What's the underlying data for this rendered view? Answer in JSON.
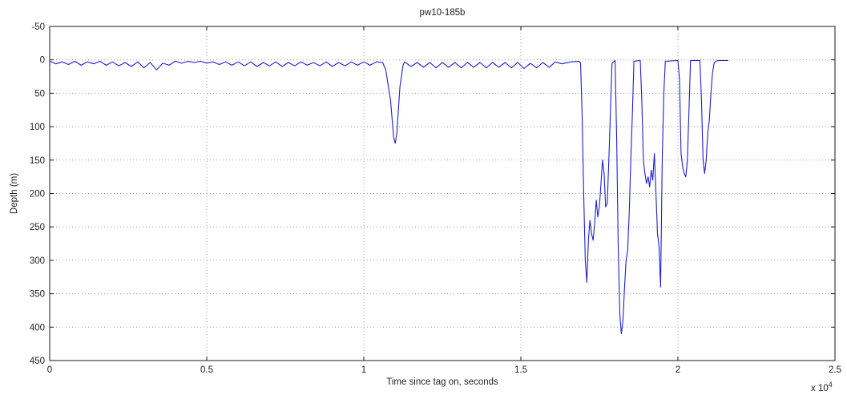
{
  "chart_data": {
    "type": "line",
    "title": "pw10-185b",
    "xlabel": "Time since tag on, seconds",
    "ylabel": "Depth (m)",
    "x_multiplier_label": "x 10",
    "x_multiplier_exponent": "4",
    "xlim": [
      0,
      2.5
    ],
    "ylim": [
      -50,
      450
    ],
    "y_reversed": true,
    "grid": true,
    "x_ticks": [
      0,
      0.5,
      1,
      1.5,
      2,
      2.5
    ],
    "x_tick_labels": [
      "0",
      "0.5",
      "1",
      "1.5",
      "2",
      "2.5"
    ],
    "y_ticks": [
      -50,
      0,
      50,
      100,
      150,
      200,
      250,
      300,
      350,
      400,
      450
    ],
    "y_tick_labels": [
      "-50",
      "0",
      "50",
      "100",
      "150",
      "200",
      "250",
      "300",
      "350",
      "400",
      "450"
    ],
    "colors": {
      "series": "#1f1fd0",
      "grid": "#9a9a9a",
      "frame": "#1a1a1a"
    },
    "series": [
      {
        "values": [
          [
            0.0,
            2
          ],
          [
            0.02,
            6
          ],
          [
            0.04,
            3
          ],
          [
            0.06,
            7
          ],
          [
            0.08,
            2
          ],
          [
            0.1,
            8
          ],
          [
            0.12,
            3
          ],
          [
            0.14,
            6
          ],
          [
            0.16,
            2
          ],
          [
            0.18,
            8
          ],
          [
            0.2,
            3
          ],
          [
            0.22,
            9
          ],
          [
            0.24,
            4
          ],
          [
            0.26,
            10
          ],
          [
            0.28,
            3
          ],
          [
            0.3,
            12
          ],
          [
            0.32,
            4
          ],
          [
            0.34,
            15
          ],
          [
            0.36,
            5
          ],
          [
            0.38,
            8
          ],
          [
            0.4,
            2
          ],
          [
            0.42,
            5
          ],
          [
            0.44,
            2
          ],
          [
            0.46,
            4
          ],
          [
            0.48,
            2
          ],
          [
            0.5,
            5
          ],
          [
            0.52,
            3
          ],
          [
            0.54,
            7
          ],
          [
            0.56,
            3
          ],
          [
            0.58,
            8
          ],
          [
            0.6,
            3
          ],
          [
            0.62,
            9
          ],
          [
            0.64,
            3
          ],
          [
            0.66,
            10
          ],
          [
            0.68,
            4
          ],
          [
            0.7,
            9
          ],
          [
            0.72,
            3
          ],
          [
            0.74,
            10
          ],
          [
            0.76,
            4
          ],
          [
            0.78,
            9
          ],
          [
            0.8,
            3
          ],
          [
            0.82,
            8
          ],
          [
            0.84,
            4
          ],
          [
            0.86,
            9
          ],
          [
            0.88,
            3
          ],
          [
            0.9,
            10
          ],
          [
            0.92,
            4
          ],
          [
            0.94,
            9
          ],
          [
            0.96,
            3
          ],
          [
            0.98,
            8
          ],
          [
            1.0,
            3
          ],
          [
            1.02,
            8
          ],
          [
            1.04,
            3
          ],
          [
            1.06,
            4
          ],
          [
            1.07,
            15
          ],
          [
            1.085,
            60
          ],
          [
            1.095,
            115
          ],
          [
            1.1,
            125
          ],
          [
            1.105,
            110
          ],
          [
            1.115,
            40
          ],
          [
            1.125,
            8
          ],
          [
            1.13,
            3
          ],
          [
            1.15,
            10
          ],
          [
            1.17,
            4
          ],
          [
            1.19,
            11
          ],
          [
            1.21,
            4
          ],
          [
            1.23,
            12
          ],
          [
            1.25,
            4
          ],
          [
            1.27,
            11
          ],
          [
            1.29,
            4
          ],
          [
            1.31,
            12
          ],
          [
            1.33,
            4
          ],
          [
            1.35,
            11
          ],
          [
            1.37,
            4
          ],
          [
            1.39,
            12
          ],
          [
            1.41,
            4
          ],
          [
            1.43,
            11
          ],
          [
            1.45,
            4
          ],
          [
            1.47,
            12
          ],
          [
            1.49,
            4
          ],
          [
            1.51,
            13
          ],
          [
            1.53,
            5
          ],
          [
            1.55,
            12
          ],
          [
            1.57,
            4
          ],
          [
            1.59,
            11
          ],
          [
            1.61,
            3
          ],
          [
            1.63,
            6
          ],
          [
            1.66,
            3
          ],
          [
            1.685,
            2
          ],
          [
            1.69,
            5
          ],
          [
            1.695,
            80
          ],
          [
            1.7,
            200
          ],
          [
            1.705,
            300
          ],
          [
            1.71,
            333
          ],
          [
            1.715,
            270
          ],
          [
            1.72,
            240
          ],
          [
            1.725,
            260
          ],
          [
            1.73,
            270
          ],
          [
            1.735,
            245
          ],
          [
            1.74,
            210
          ],
          [
            1.745,
            235
          ],
          [
            1.75,
            220
          ],
          [
            1.755,
            185
          ],
          [
            1.76,
            150
          ],
          [
            1.765,
            170
          ],
          [
            1.77,
            220
          ],
          [
            1.775,
            215
          ],
          [
            1.78,
            150
          ],
          [
            1.785,
            80
          ],
          [
            1.79,
            5
          ],
          [
            1.8,
            1
          ],
          [
            1.805,
            120
          ],
          [
            1.81,
            280
          ],
          [
            1.815,
            380
          ],
          [
            1.82,
            410
          ],
          [
            1.825,
            390
          ],
          [
            1.83,
            340
          ],
          [
            1.835,
            300
          ],
          [
            1.84,
            285
          ],
          [
            1.845,
            230
          ],
          [
            1.85,
            150
          ],
          [
            1.855,
            80
          ],
          [
            1.86,
            2
          ],
          [
            1.88,
            1
          ],
          [
            1.885,
            60
          ],
          [
            1.89,
            150
          ],
          [
            1.895,
            170
          ],
          [
            1.9,
            185
          ],
          [
            1.905,
            175
          ],
          [
            1.91,
            190
          ],
          [
            1.915,
            165
          ],
          [
            1.92,
            180
          ],
          [
            1.925,
            140
          ],
          [
            1.93,
            200
          ],
          [
            1.935,
            260
          ],
          [
            1.94,
            280
          ],
          [
            1.945,
            340
          ],
          [
            1.95,
            150
          ],
          [
            1.955,
            50
          ],
          [
            1.96,
            2
          ],
          [
            2.0,
            1
          ],
          [
            2.005,
            30
          ],
          [
            2.01,
            140
          ],
          [
            2.015,
            160
          ],
          [
            2.02,
            170
          ],
          [
            2.025,
            175
          ],
          [
            2.03,
            150
          ],
          [
            2.035,
            80
          ],
          [
            2.04,
            1
          ],
          [
            2.07,
            1
          ],
          [
            2.075,
            60
          ],
          [
            2.08,
            150
          ],
          [
            2.085,
            170
          ],
          [
            2.09,
            150
          ],
          [
            2.095,
            110
          ],
          [
            2.1,
            90
          ],
          [
            2.105,
            50
          ],
          [
            2.11,
            20
          ],
          [
            2.115,
            5
          ],
          [
            2.12,
            2
          ],
          [
            2.13,
            1
          ],
          [
            2.16,
            1
          ]
        ]
      }
    ]
  }
}
